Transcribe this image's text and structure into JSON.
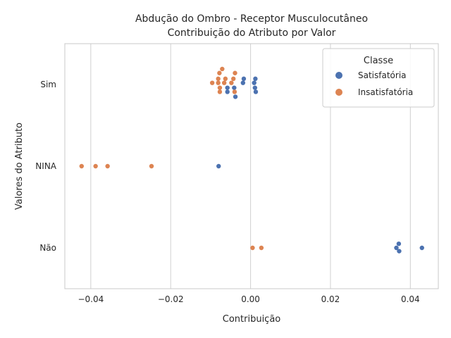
{
  "chart_data": {
    "type": "scatter",
    "title_lines": [
      "Abdução do Ombro - Receptor Musculocutâneo",
      "Contribuição do Atributo por Valor"
    ],
    "xlabel": "Contribuição",
    "ylabel": "Valores do Atributo",
    "categories": [
      "Sim",
      "NINA",
      "Não"
    ],
    "xlim": [
      -0.0465,
      0.047
    ],
    "x_ticks": [
      -0.04,
      -0.02,
      0.0,
      0.02,
      0.04
    ],
    "x_tick_labels": [
      "−0.04",
      "−0.02",
      "0.00",
      "0.02",
      "0.04"
    ],
    "grid": true,
    "legend": {
      "title": "Classe",
      "placement": "top-right",
      "entries": [
        "Satisfatória",
        "Insatisfatória"
      ]
    },
    "series": [
      {
        "name": "Satisfatória",
        "color": "#4c72b0",
        "points": [
          {
            "x": -0.0017,
            "y": "Sim",
            "j": -0.07
          },
          {
            "x": 0.0012,
            "y": "Sim",
            "j": -0.07
          },
          {
            "x": -0.0019,
            "y": "Sim",
            "j": -0.02
          },
          {
            "x": 0.0009,
            "y": "Sim",
            "j": -0.02
          },
          {
            "x": -0.0058,
            "y": "Sim",
            "j": 0.04
          },
          {
            "x": -0.0041,
            "y": "Sim",
            "j": 0.04
          },
          {
            "x": 0.0011,
            "y": "Sim",
            "j": 0.04
          },
          {
            "x": -0.0058,
            "y": "Sim",
            "j": 0.09
          },
          {
            "x": 0.0013,
            "y": "Sim",
            "j": 0.09
          },
          {
            "x": -0.0038,
            "y": "Sim",
            "j": 0.15
          },
          {
            "x": -0.008,
            "y": "NINA",
            "j": 0.0
          },
          {
            "x": 0.0371,
            "y": "Não",
            "j": -0.05
          },
          {
            "x": 0.0365,
            "y": "Não",
            "j": 0.0
          },
          {
            "x": 0.0429,
            "y": "Não",
            "j": 0.0
          },
          {
            "x": 0.0372,
            "y": "Não",
            "j": 0.04
          }
        ]
      },
      {
        "name": "Insatisfatória",
        "color": "#dd8452",
        "points": [
          {
            "x": -0.0071,
            "y": "Sim",
            "j": -0.19
          },
          {
            "x": -0.0078,
            "y": "Sim",
            "j": -0.14
          },
          {
            "x": -0.0039,
            "y": "Sim",
            "j": -0.14
          },
          {
            "x": -0.0081,
            "y": "Sim",
            "j": -0.07
          },
          {
            "x": -0.0063,
            "y": "Sim",
            "j": -0.07
          },
          {
            "x": -0.0043,
            "y": "Sim",
            "j": -0.07
          },
          {
            "x": -0.0096,
            "y": "Sim",
            "j": -0.02
          },
          {
            "x": -0.0081,
            "y": "Sim",
            "j": -0.02
          },
          {
            "x": -0.0066,
            "y": "Sim",
            "j": -0.02
          },
          {
            "x": -0.0048,
            "y": "Sim",
            "j": -0.02
          },
          {
            "x": -0.0077,
            "y": "Sim",
            "j": 0.04
          },
          {
            "x": -0.0077,
            "y": "Sim",
            "j": 0.09
          },
          {
            "x": -0.004,
            "y": "Sim",
            "j": 0.09
          },
          {
            "x": -0.0423,
            "y": "NINA",
            "j": 0.0
          },
          {
            "x": -0.0388,
            "y": "NINA",
            "j": 0.0
          },
          {
            "x": -0.0358,
            "y": "NINA",
            "j": 0.0
          },
          {
            "x": -0.0248,
            "y": "NINA",
            "j": 0.0
          },
          {
            "x": 0.0005,
            "y": "Não",
            "j": 0.0
          },
          {
            "x": 0.0027,
            "y": "Não",
            "j": 0.0
          }
        ]
      }
    ]
  }
}
